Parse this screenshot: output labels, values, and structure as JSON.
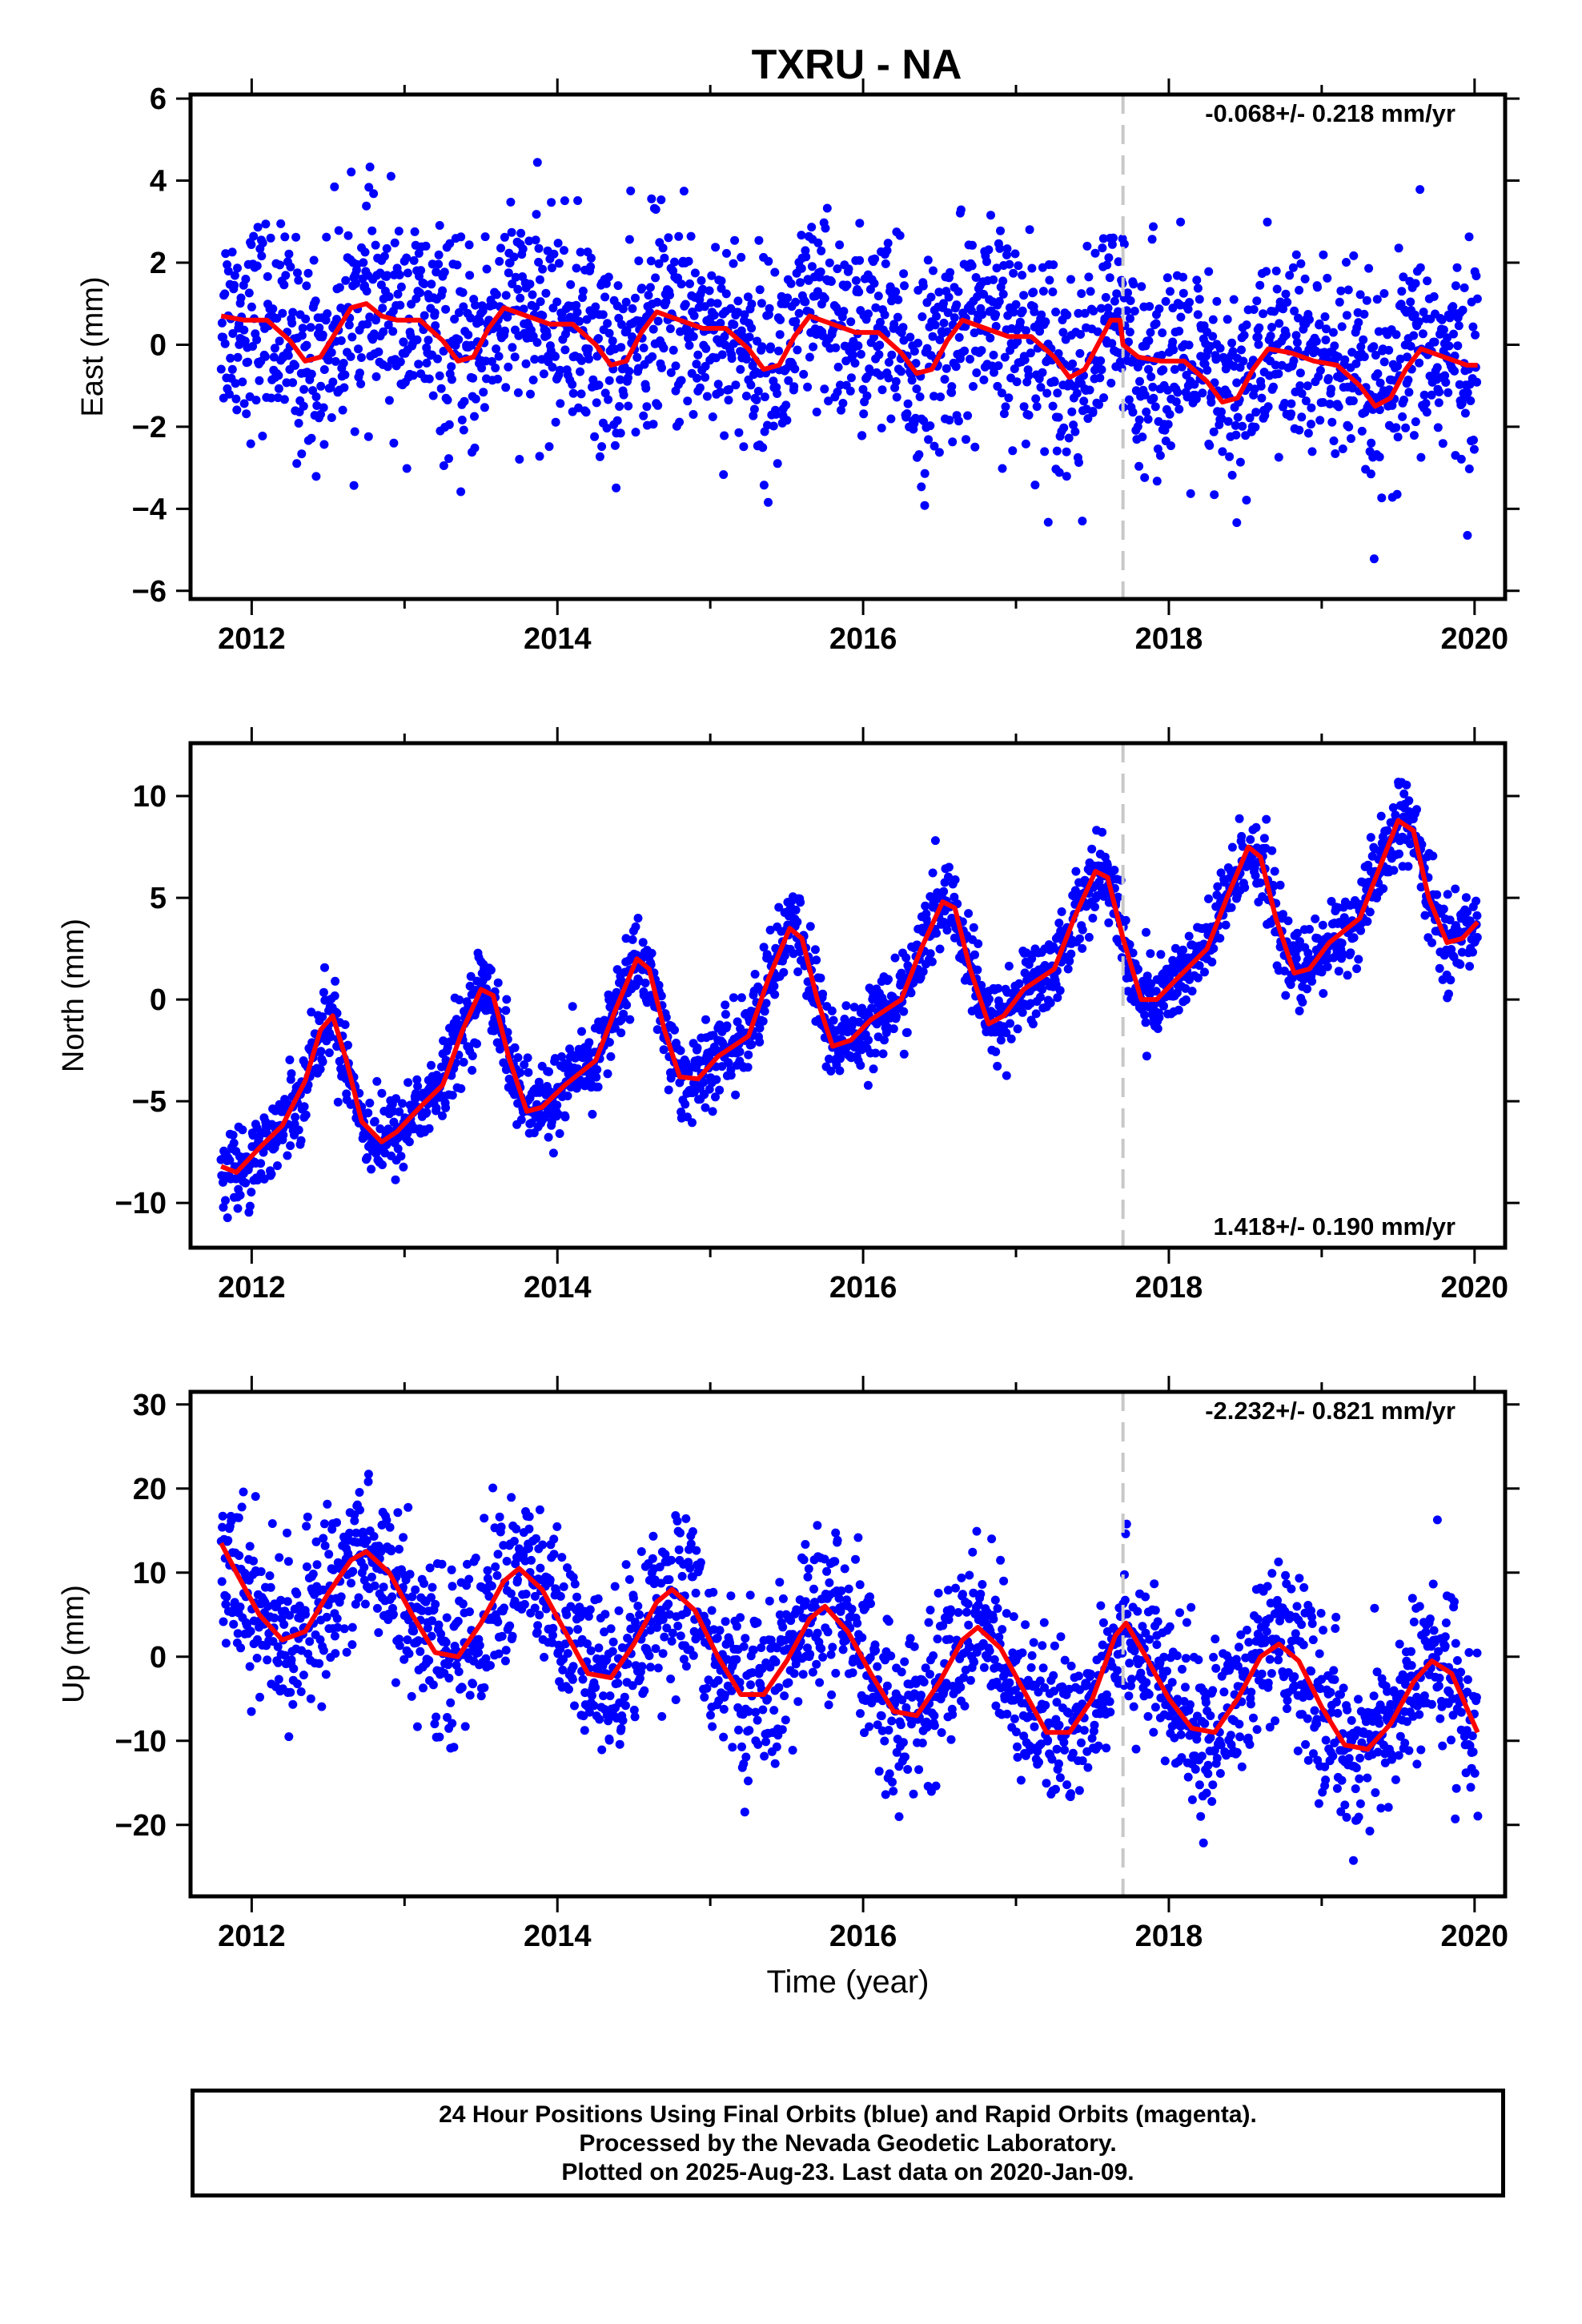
{
  "title": "TXRU - NA",
  "chart_data": [
    {
      "type": "scatter",
      "ylabel": "East (mm)",
      "xlabel": "",
      "xlim": [
        2011.6,
        2020.2
      ],
      "ylim": [
        -6.2,
        6.1
      ],
      "xticks": [
        2012,
        2014,
        2016,
        2018,
        2020
      ],
      "yticks": [
        -6,
        -4,
        -2,
        0,
        2,
        4,
        6
      ],
      "rate_label": "-0.068+/- 0.218 mm/yr",
      "rate_position": "top-right",
      "dashed_marker_x": 2017.7,
      "model": {
        "name": "fit",
        "color": "#ff0000",
        "points": [
          [
            2011.8,
            0.7
          ],
          [
            2011.95,
            0.6
          ],
          [
            2012.1,
            0.6
          ],
          [
            2012.25,
            0.1
          ],
          [
            2012.35,
            -0.4
          ],
          [
            2012.45,
            -0.3
          ],
          [
            2012.55,
            0.3
          ],
          [
            2012.65,
            0.9
          ],
          [
            2012.75,
            1.0
          ],
          [
            2012.85,
            0.7
          ],
          [
            2012.95,
            0.6
          ],
          [
            2013.1,
            0.6
          ],
          [
            2013.25,
            0.1
          ],
          [
            2013.35,
            -0.4
          ],
          [
            2013.45,
            -0.3
          ],
          [
            2013.55,
            0.4
          ],
          [
            2013.65,
            0.9
          ],
          [
            2013.8,
            0.7
          ],
          [
            2013.95,
            0.5
          ],
          [
            2014.1,
            0.5
          ],
          [
            2014.25,
            0.0
          ],
          [
            2014.35,
            -0.5
          ],
          [
            2014.45,
            -0.4
          ],
          [
            2014.55,
            0.3
          ],
          [
            2014.65,
            0.8
          ],
          [
            2014.8,
            0.6
          ],
          [
            2014.95,
            0.4
          ],
          [
            2015.1,
            0.4
          ],
          [
            2015.25,
            -0.1
          ],
          [
            2015.35,
            -0.6
          ],
          [
            2015.45,
            -0.5
          ],
          [
            2015.55,
            0.2
          ],
          [
            2015.65,
            0.7
          ],
          [
            2015.8,
            0.5
          ],
          [
            2015.95,
            0.3
          ],
          [
            2016.1,
            0.3
          ],
          [
            2016.25,
            -0.2
          ],
          [
            2016.35,
            -0.7
          ],
          [
            2016.45,
            -0.6
          ],
          [
            2016.55,
            0.1
          ],
          [
            2016.65,
            0.6
          ],
          [
            2016.8,
            0.4
          ],
          [
            2016.95,
            0.2
          ],
          [
            2017.1,
            0.2
          ],
          [
            2017.25,
            -0.3
          ],
          [
            2017.35,
            -0.8
          ],
          [
            2017.45,
            -0.6
          ],
          [
            2017.55,
            0.1
          ],
          [
            2017.62,
            0.6
          ],
          [
            2017.68,
            0.6
          ],
          [
            2017.7,
            0.0
          ],
          [
            2017.8,
            -0.3
          ],
          [
            2017.95,
            -0.4
          ],
          [
            2018.1,
            -0.4
          ],
          [
            2018.25,
            -0.9
          ],
          [
            2018.35,
            -1.4
          ],
          [
            2018.45,
            -1.3
          ],
          [
            2018.55,
            -0.6
          ],
          [
            2018.65,
            -0.1
          ],
          [
            2018.8,
            -0.2
          ],
          [
            2018.95,
            -0.4
          ],
          [
            2019.1,
            -0.5
          ],
          [
            2019.25,
            -1.0
          ],
          [
            2019.35,
            -1.5
          ],
          [
            2019.45,
            -1.3
          ],
          [
            2019.55,
            -0.6
          ],
          [
            2019.65,
            -0.1
          ],
          [
            2019.8,
            -0.3
          ],
          [
            2019.95,
            -0.5
          ],
          [
            2020.02,
            -0.5
          ]
        ]
      }
    },
    {
      "type": "scatter",
      "ylabel": "North (mm)",
      "xlabel": "",
      "xlim": [
        2011.6,
        2020.2
      ],
      "ylim": [
        -12.2,
        12.6
      ],
      "xticks": [
        2012,
        2014,
        2016,
        2018,
        2020
      ],
      "yticks": [
        -10,
        -5,
        0,
        5,
        10
      ],
      "rate_label": "1.418+/- 0.190 mm/yr",
      "rate_position": "bottom-right",
      "dashed_marker_x": 2017.7,
      "model": {
        "name": "fit",
        "color": "#ff0000",
        "points": [
          [
            2011.8,
            -8.2
          ],
          [
            2011.9,
            -8.5
          ],
          [
            2012.05,
            -7.3
          ],
          [
            2012.2,
            -6.2
          ],
          [
            2012.35,
            -4.0
          ],
          [
            2012.45,
            -1.5
          ],
          [
            2012.53,
            -0.8
          ],
          [
            2012.62,
            -3.0
          ],
          [
            2012.72,
            -6.0
          ],
          [
            2012.85,
            -7.0
          ],
          [
            2012.95,
            -6.5
          ],
          [
            2013.1,
            -5.3
          ],
          [
            2013.25,
            -4.2
          ],
          [
            2013.38,
            -1.5
          ],
          [
            2013.5,
            0.5
          ],
          [
            2013.58,
            0.2
          ],
          [
            2013.68,
            -2.8
          ],
          [
            2013.8,
            -5.5
          ],
          [
            2013.9,
            -5.3
          ],
          [
            2014.05,
            -4.2
          ],
          [
            2014.25,
            -3.0
          ],
          [
            2014.38,
            -0.5
          ],
          [
            2014.52,
            2.0
          ],
          [
            2014.6,
            1.5
          ],
          [
            2014.7,
            -1.5
          ],
          [
            2014.8,
            -3.8
          ],
          [
            2014.92,
            -3.9
          ],
          [
            2015.05,
            -2.8
          ],
          [
            2015.25,
            -1.8
          ],
          [
            2015.38,
            1.0
          ],
          [
            2015.52,
            3.5
          ],
          [
            2015.6,
            3.0
          ],
          [
            2015.7,
            0.0
          ],
          [
            2015.8,
            -2.3
          ],
          [
            2015.92,
            -2.0
          ],
          [
            2016.05,
            -1.0
          ],
          [
            2016.25,
            0.0
          ],
          [
            2016.38,
            2.5
          ],
          [
            2016.52,
            4.8
          ],
          [
            2016.6,
            4.5
          ],
          [
            2016.7,
            1.5
          ],
          [
            2016.82,
            -1.2
          ],
          [
            2016.92,
            -0.8
          ],
          [
            2017.05,
            0.5
          ],
          [
            2017.25,
            1.5
          ],
          [
            2017.38,
            4.0
          ],
          [
            2017.52,
            6.3
          ],
          [
            2017.6,
            6.0
          ],
          [
            2017.7,
            3.0
          ],
          [
            2017.82,
            0.0
          ],
          [
            2017.92,
            0.0
          ],
          [
            2018.05,
            1.0
          ],
          [
            2018.25,
            2.5
          ],
          [
            2018.38,
            5.0
          ],
          [
            2018.52,
            7.5
          ],
          [
            2018.6,
            7.0
          ],
          [
            2018.7,
            4.0
          ],
          [
            2018.82,
            1.3
          ],
          [
            2018.92,
            1.5
          ],
          [
            2019.05,
            2.8
          ],
          [
            2019.25,
            4.0
          ],
          [
            2019.38,
            6.5
          ],
          [
            2019.5,
            8.8
          ],
          [
            2019.6,
            8.3
          ],
          [
            2019.7,
            5.0
          ],
          [
            2019.82,
            2.8
          ],
          [
            2019.92,
            3.0
          ],
          [
            2020.02,
            3.8
          ]
        ]
      }
    },
    {
      "type": "scatter",
      "ylabel": "Up (mm)",
      "xlabel": "Time (year)",
      "xlim": [
        2011.6,
        2020.2
      ],
      "ylim": [
        -28.5,
        31.5
      ],
      "xticks": [
        2012,
        2014,
        2016,
        2018,
        2020
      ],
      "yticks": [
        -20,
        -10,
        0,
        10,
        20,
        30
      ],
      "rate_label": "-2.232+/- 0.821 mm/yr",
      "rate_position": "top-right",
      "dashed_marker_x": 2017.7,
      "model": {
        "name": "fit",
        "color": "#ff0000",
        "points": [
          [
            2011.8,
            13.5
          ],
          [
            2011.9,
            10.0
          ],
          [
            2012.05,
            5.0
          ],
          [
            2012.2,
            2.0
          ],
          [
            2012.35,
            3.0
          ],
          [
            2012.5,
            7.5
          ],
          [
            2012.65,
            11.5
          ],
          [
            2012.75,
            12.5
          ],
          [
            2012.9,
            10.0
          ],
          [
            2013.05,
            5.0
          ],
          [
            2013.2,
            0.5
          ],
          [
            2013.35,
            0.0
          ],
          [
            2013.5,
            4.0
          ],
          [
            2013.65,
            9.0
          ],
          [
            2013.75,
            10.5
          ],
          [
            2013.9,
            8.0
          ],
          [
            2014.05,
            3.0
          ],
          [
            2014.2,
            -2.0
          ],
          [
            2014.35,
            -2.5
          ],
          [
            2014.5,
            1.5
          ],
          [
            2014.65,
            6.5
          ],
          [
            2014.75,
            8.0
          ],
          [
            2014.9,
            5.5
          ],
          [
            2015.05,
            0.0
          ],
          [
            2015.2,
            -4.5
          ],
          [
            2015.35,
            -4.5
          ],
          [
            2015.5,
            -0.5
          ],
          [
            2015.65,
            4.5
          ],
          [
            2015.75,
            6.0
          ],
          [
            2015.9,
            3.0
          ],
          [
            2016.05,
            -2.0
          ],
          [
            2016.2,
            -6.5
          ],
          [
            2016.35,
            -7.0
          ],
          [
            2016.5,
            -3.0
          ],
          [
            2016.65,
            2.0
          ],
          [
            2016.75,
            3.5
          ],
          [
            2016.9,
            1.0
          ],
          [
            2017.05,
            -4.0
          ],
          [
            2017.2,
            -9.0
          ],
          [
            2017.35,
            -9.0
          ],
          [
            2017.5,
            -5.0
          ],
          [
            2017.65,
            2.5
          ],
          [
            2017.72,
            4.0
          ],
          [
            2017.85,
            0.0
          ],
          [
            2018.0,
            -5.0
          ],
          [
            2018.15,
            -8.5
          ],
          [
            2018.3,
            -9.0
          ],
          [
            2018.45,
            -5.0
          ],
          [
            2018.6,
            0.0
          ],
          [
            2018.72,
            1.5
          ],
          [
            2018.85,
            -0.5
          ],
          [
            2019.0,
            -6.0
          ],
          [
            2019.15,
            -10.5
          ],
          [
            2019.3,
            -11.0
          ],
          [
            2019.45,
            -8.0
          ],
          [
            2019.6,
            -3.0
          ],
          [
            2019.72,
            -0.5
          ],
          [
            2019.85,
            -2.0
          ],
          [
            2020.02,
            -9.0
          ]
        ]
      }
    }
  ],
  "footer": {
    "line1": "24 Hour Positions Using Final Orbits (blue) and Rapid Orbits (magenta).",
    "line2": "Processed by the Nevada Geodetic Laboratory.",
    "line3": "Plotted on 2025-Aug-23. Last data on 2020-Jan-09."
  },
  "colors": {
    "points": "#0000ff",
    "fit": "#ff0000",
    "marker": "#c8c8c8"
  }
}
